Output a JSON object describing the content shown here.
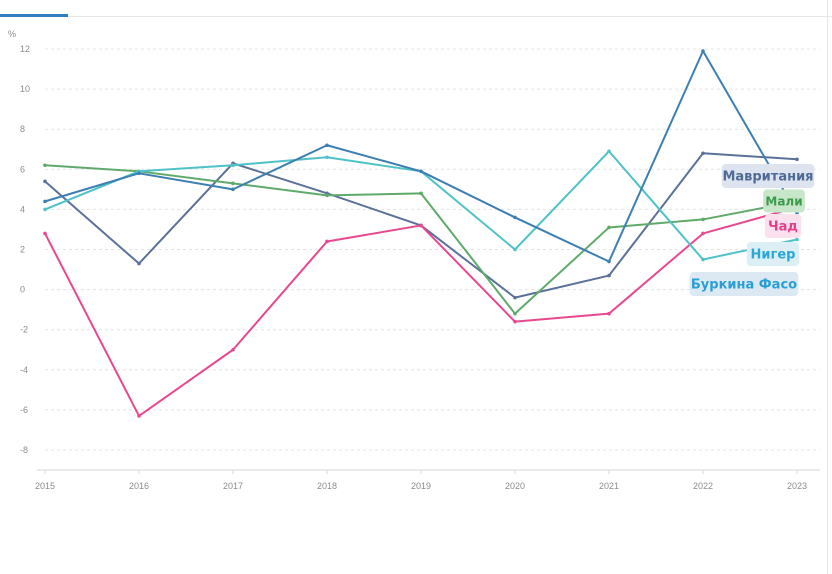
{
  "chart_data": {
    "type": "line",
    "unit_label": "%",
    "x": [
      "2015",
      "2016",
      "2017",
      "2018",
      "2019",
      "2020",
      "2021",
      "2022",
      "2023"
    ],
    "ylim": [
      -8,
      12
    ],
    "yticks": [
      "12",
      "10",
      "8",
      "6",
      "4",
      "2",
      "0",
      "-2",
      "-4",
      "-6",
      "-8"
    ],
    "grid": true,
    "series": [
      {
        "name": "Мавритания",
        "color": "#5b7199",
        "label_bg": "#dde4ef",
        "label_color": "#4f6a95",
        "values": [
          5.4,
          1.3,
          6.3,
          4.8,
          3.2,
          -0.4,
          0.7,
          6.8,
          6.5
        ]
      },
      {
        "name": "Мали",
        "color": "#5faa6b",
        "label_bg": "#c8e6c9",
        "label_color": "#3c9a4a",
        "values": [
          6.2,
          5.9,
          5.3,
          4.7,
          4.8,
          -1.2,
          3.1,
          3.5,
          4.4
        ]
      },
      {
        "name": "Чад",
        "color": "#e8488f",
        "label_bg": "#fbe1ee",
        "label_color": "#e43e8b",
        "values": [
          2.8,
          -6.3,
          -3.0,
          2.4,
          3.2,
          -1.6,
          -1.2,
          2.8,
          4.1
        ]
      },
      {
        "name": "Нигер",
        "color": "#4fc2c8",
        "label_bg": "#dceff5",
        "label_color": "#2aa7d6",
        "values": [
          4.0,
          5.9,
          6.2,
          6.6,
          5.9,
          2.0,
          6.9,
          1.5,
          2.5
        ]
      },
      {
        "name": "Буркина Фасо",
        "color": "#3c7fb1",
        "label_bg": "#dce9f3",
        "label_color": "#2a9fd5",
        "values": [
          4.4,
          5.8,
          5.0,
          7.2,
          5.9,
          3.6,
          1.4,
          11.9,
          3.8
        ]
      }
    ]
  }
}
